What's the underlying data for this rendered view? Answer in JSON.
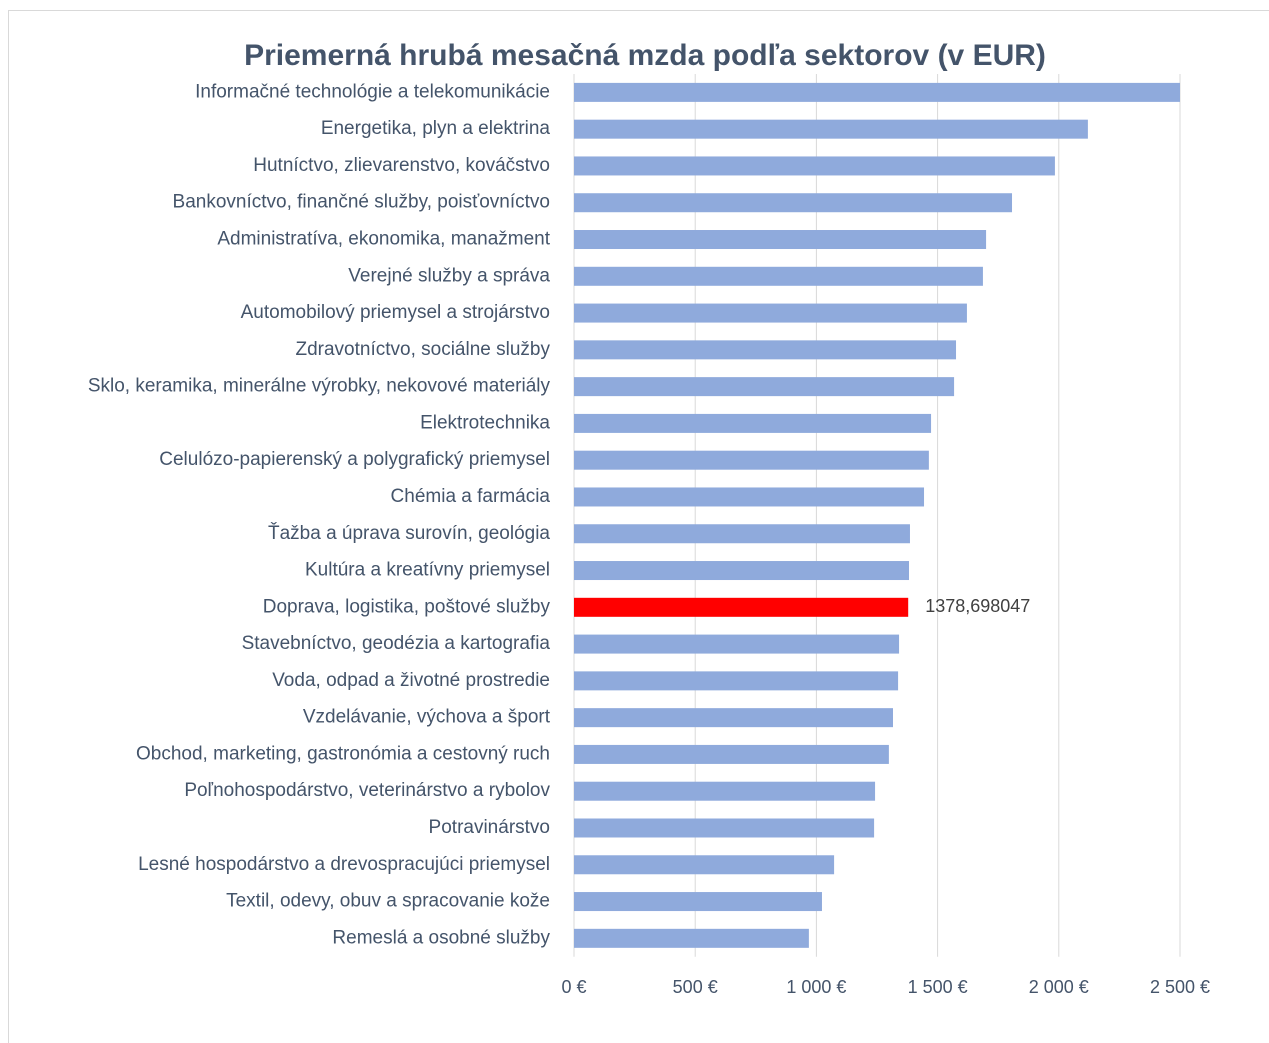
{
  "chart_data": {
    "type": "barh",
    "title": "Priemerná hrubá mesačná mzda podľa sektorov (v EUR)",
    "categories": [
      "Informačné technológie a telekomunikácie",
      "Energetika, plyn a elektrina",
      "Hutníctvo, zlievarenstvo, kováčstvo",
      "Bankovníctvo, finančné služby, poisťovníctvo",
      "Administratíva, ekonomika, manažment",
      "Verejné služby a správa",
      "Automobilový priemysel a strojárstvo",
      "Zdravotníctvo, sociálne služby",
      "Sklo, keramika, minerálne výrobky, nekovové materiály",
      "Elektrotechnika",
      "Celulózo-papierenský a polygrafický priemysel",
      "Chémia a farmácia",
      "Ťažba a úprava surovín, geológia",
      "Kultúra a kreatívny priemysel",
      "Doprava, logistika, poštové služby",
      "Stavebníctvo, geodézia a kartografia",
      "Voda, odpad a životné prostredie",
      "Vzdelávanie, výchova a šport",
      "Obchod, marketing, gastronómia a cestovný ruch",
      "Poľnohospodárstvo, veterinárstvo a rybolov",
      "Potravinárstvo",
      "Lesné hospodárstvo a drevospracujúci priemysel",
      "Textil, odevy, obuv a spracovanie kože",
      "Remeslá a osobné služby"
    ],
    "values": [
      2500,
      2120,
      1984,
      1807,
      1700,
      1687,
      1621,
      1576,
      1568,
      1473,
      1464,
      1444,
      1386,
      1382,
      1378.698047,
      1341,
      1337,
      1316,
      1299,
      1242,
      1238,
      1073,
      1023,
      969
    ],
    "value_labels": [
      null,
      null,
      null,
      null,
      null,
      null,
      null,
      null,
      null,
      null,
      null,
      null,
      null,
      null,
      "1378,698047",
      null,
      null,
      null,
      null,
      null,
      null,
      null,
      null,
      null
    ],
    "colors": [
      "#8faadc",
      "#8faadc",
      "#8faadc",
      "#8faadc",
      "#8faadc",
      "#8faadc",
      "#8faadc",
      "#8faadc",
      "#8faadc",
      "#8faadc",
      "#8faadc",
      "#8faadc",
      "#8faadc",
      "#8faadc",
      "#ff0000",
      "#8faadc",
      "#8faadc",
      "#8faadc",
      "#8faadc",
      "#8faadc",
      "#8faadc",
      "#8faadc",
      "#8faadc",
      "#8faadc"
    ],
    "xlim": [
      0,
      2500
    ],
    "xticks": [
      {
        "value": 0,
        "label": "0 €"
      },
      {
        "value": 500,
        "label": "500 €"
      },
      {
        "value": 1000,
        "label": "1 000 €"
      },
      {
        "value": 1500,
        "label": "1 500 €"
      },
      {
        "value": 2000,
        "label": "2 000 €"
      },
      {
        "value": 2500,
        "label": "2 500 €"
      }
    ],
    "grid": true
  }
}
